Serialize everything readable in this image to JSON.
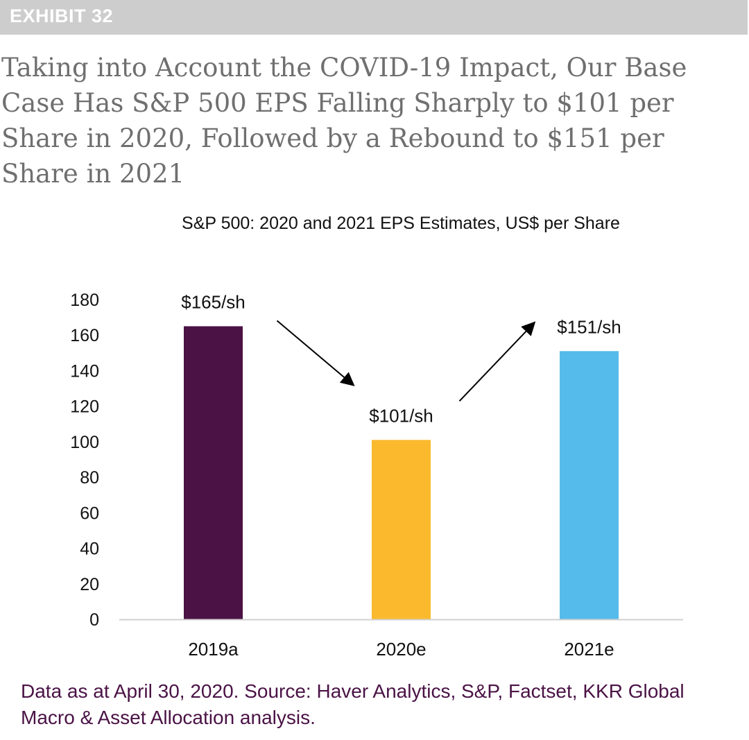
{
  "banner": {
    "label": "EXHIBIT 32"
  },
  "title": "Taking into Account the COVID-19 Impact, Our Base Case Has S&P 500 EPS Falling Sharply to $101 per Share in 2020, Followed by a Rebound to $151 per Share in 2021",
  "colors": {
    "banner": "#cdcdcd",
    "title": "#6f6f6f",
    "source": "#4a1245"
  },
  "chart_data": {
    "type": "bar",
    "title": "S&P 500: 2020 and 2021 EPS Estimates, US$ per Share",
    "categories": [
      "2019a",
      "2020e",
      "2021e"
    ],
    "values": [
      165,
      101,
      151
    ],
    "data_labels": [
      "$165/sh",
      "$101/sh",
      "$151/sh"
    ],
    "colors": [
      "#4a1245",
      "#fbb92e",
      "#55bbea"
    ],
    "ylim": [
      0,
      180
    ],
    "yticks": [
      0,
      20,
      40,
      60,
      80,
      100,
      120,
      140,
      160,
      180
    ],
    "xlabel": "",
    "ylabel": "",
    "grid": false,
    "annotations": [
      {
        "type": "arrow",
        "direction": "down",
        "from": "2019a",
        "to": "2020e"
      },
      {
        "type": "arrow",
        "direction": "up",
        "from": "2020e",
        "to": "2021e"
      }
    ]
  },
  "source": "Data as at April 30, 2020. Source: Haver Analytics, S&P, Factset, KKR Global Macro & Asset Allocation analysis."
}
